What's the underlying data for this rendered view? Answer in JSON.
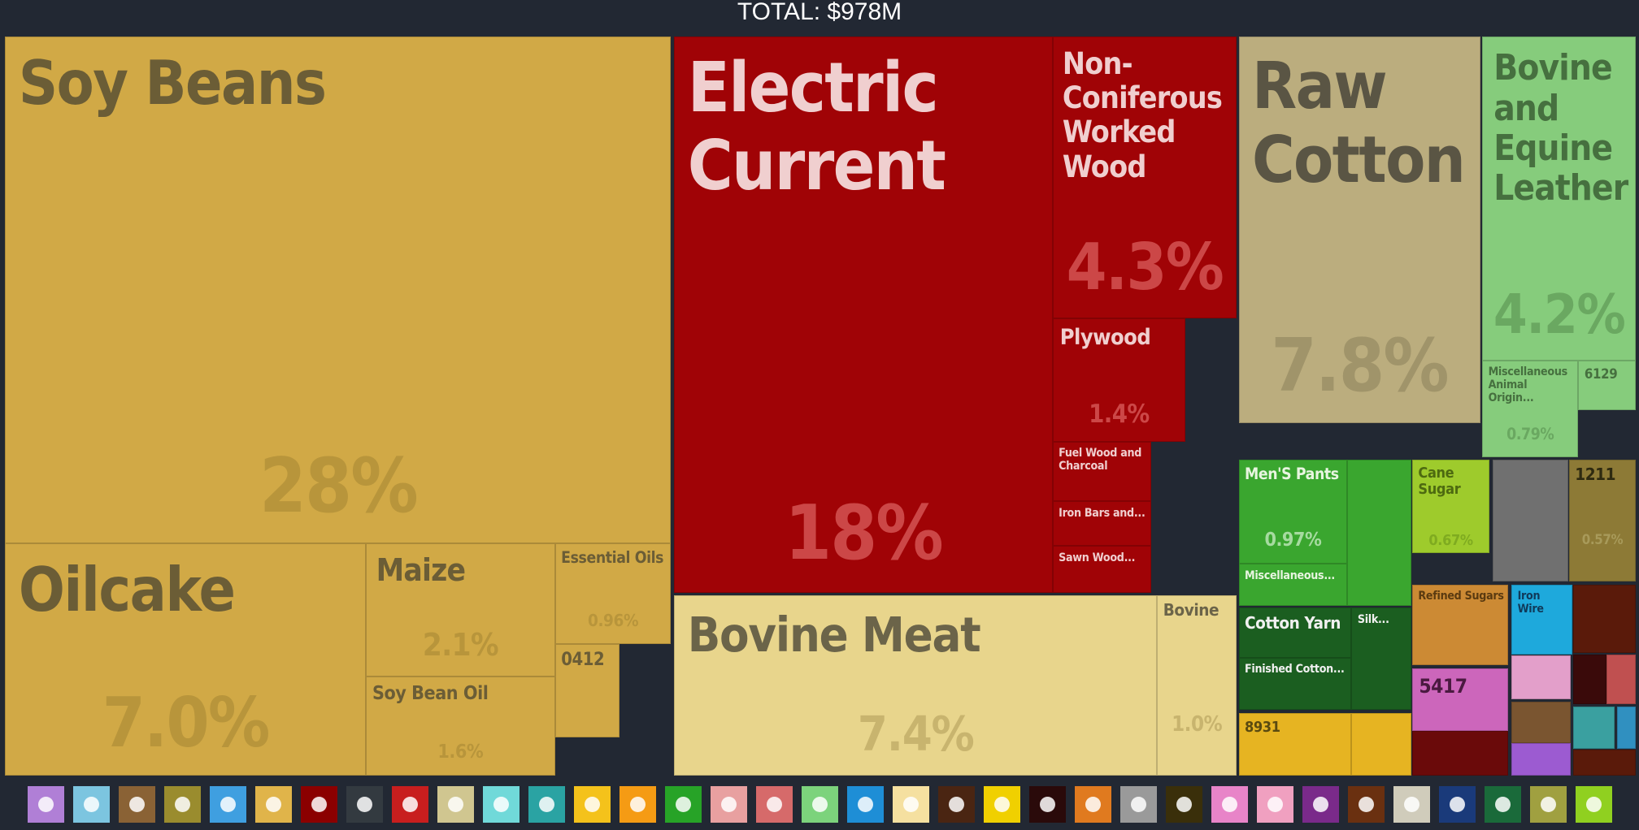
{
  "chart_data": {
    "type": "treemap",
    "title": "TOTAL: $978M",
    "categories": [
      "Soy Beans",
      "Oilcake",
      "Maize",
      "Soy Bean Oil",
      "Essential Oils",
      "0412",
      "Electric Current",
      "Non-Coniferous Worked Wood",
      "Plywood",
      "Fuel Wood and Charcoal",
      "Iron Bars and...",
      "Sawn Wood...",
      "Bovine Meat",
      "Bovine",
      "Raw Cotton",
      "Bovine and Equine Leather",
      "Miscellaneous Animal Origin...",
      "6129",
      "Men'S Pants",
      "Miscellaneous...",
      "Cane Sugar",
      "1211",
      "Cotton Yarn",
      "Silk...",
      "Finished Cotton...",
      "8931",
      "Refined Sugars",
      "Iron Wire",
      "5417",
      null,
      null,
      null,
      null,
      null,
      null,
      null,
      null,
      null,
      null,
      null,
      null,
      null
    ],
    "values": [
      28,
      7.0,
      2.1,
      1.6,
      0.96,
      0.5,
      18,
      4.3,
      1.4,
      0.45,
      0.35,
      0.3,
      7.4,
      1.0,
      7.8,
      4.2,
      0.79,
      0.25,
      0.97,
      0.2,
      0.67,
      0.57,
      0.6,
      0.2,
      0.5,
      0.4,
      0.4,
      0.25,
      0.3,
      0.5,
      0.25,
      0.15,
      0.15,
      0.1,
      0.25,
      0.1,
      0.08,
      0.1,
      0.05,
      0.05,
      0.35,
      0.2
    ],
    "value_labels": [
      "28%",
      "7.0%",
      "2.1%",
      "1.6%",
      "0.96%",
      null,
      "18%",
      "4.3%",
      "1.4%",
      null,
      null,
      null,
      "7.4%",
      "1.0%",
      "7.8%",
      "4.2%",
      "0.79%",
      null,
      "0.97%",
      null,
      "0.67%",
      "0.57%",
      null,
      null,
      null,
      null,
      null,
      null,
      null,
      null,
      null,
      null,
      null,
      null,
      null,
      null,
      null,
      null,
      null,
      null,
      null,
      null
    ],
    "colors": [
      "#d1a946",
      "#d1a946",
      "#d1a946",
      "#d1a946",
      "#d1a946",
      "#d1a946",
      "#a00306",
      "#a00306",
      "#a00306",
      "#a00306",
      "#a00306",
      "#a00306",
      "#e8d58c",
      "#e8d58c",
      "#bbad7e",
      "#86cc7c",
      "#86cc7c",
      "#86cc7c",
      "#3aa62f",
      "#3aa62f",
      "#9ecb2c",
      "#8d7a36",
      "#1b5e20",
      "#1b5e20",
      "#1b5e20",
      "#e6b422",
      "#cc8a34",
      "#1ea9dc",
      "#cc66bb",
      "#707070",
      "#5a1a0a",
      "#e39fca",
      "#7a5530",
      "#9c5bd1",
      "#6a0a0a",
      "#3a0a0a",
      "#c05050",
      "#3aa0a0",
      "#3090c0",
      "#5a1a0a",
      "#3aa62f",
      "#e6b422"
    ]
  }
}
